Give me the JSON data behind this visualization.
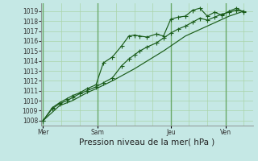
{
  "bg_color": "#c5e8e5",
  "grid_color_major": "#6aaa6a",
  "grid_color_minor": "#aad4aa",
  "line_color": "#1a5c1a",
  "marker_color": "#1a5c1a",
  "ylim": [
    1007.5,
    1019.8
  ],
  "yticks": [
    1008,
    1009,
    1010,
    1011,
    1012,
    1013,
    1014,
    1015,
    1016,
    1017,
    1018,
    1019
  ],
  "xlabel": "Pression niveau de la mer( hPa )",
  "xtick_labels": [
    "Mer",
    "Sam",
    "Jeu",
    "Ven"
  ],
  "day_positions": [
    0,
    3,
    7,
    10
  ],
  "xlim": [
    -0.1,
    11.5
  ],
  "n_cols": 12,
  "series1_x": [
    0,
    0.5,
    0.9,
    1.3,
    1.6,
    2.0,
    2.4,
    2.9,
    3.3,
    3.8,
    4.3,
    4.7,
    5.0,
    5.3,
    5.7,
    6.2,
    6.6,
    7.0,
    7.4,
    7.8,
    8.2,
    8.6,
    9.0,
    9.4,
    9.8,
    10.2,
    10.6,
    11.0
  ],
  "series1_y": [
    1008.0,
    1009.3,
    1009.8,
    1010.2,
    1010.5,
    1010.8,
    1011.2,
    1011.6,
    1013.8,
    1014.4,
    1015.5,
    1016.5,
    1016.6,
    1016.5,
    1016.4,
    1016.7,
    1016.5,
    1018.2,
    1018.4,
    1018.5,
    1019.1,
    1019.3,
    1018.5,
    1018.9,
    1018.6,
    1019.0,
    1019.3,
    1018.9
  ],
  "series2_x": [
    0,
    0.5,
    0.9,
    1.3,
    1.6,
    2.0,
    2.4,
    2.9,
    3.3,
    3.8,
    4.3,
    4.7,
    5.0,
    5.3,
    5.7,
    6.2,
    6.6,
    7.0,
    7.4,
    7.8,
    8.2,
    8.6,
    9.0,
    9.4,
    9.8,
    10.2,
    10.6,
    11.0
  ],
  "series2_y": [
    1008.0,
    1009.2,
    1009.7,
    1010.0,
    1010.3,
    1010.7,
    1011.0,
    1011.4,
    1011.8,
    1012.3,
    1013.5,
    1014.2,
    1014.6,
    1015.0,
    1015.4,
    1015.8,
    1016.3,
    1016.8,
    1017.2,
    1017.5,
    1017.9,
    1018.3,
    1018.1,
    1018.4,
    1018.7,
    1018.9,
    1019.1,
    1019.0
  ],
  "series3_x": [
    0,
    0.9,
    1.6,
    2.4,
    2.9,
    3.8,
    5.0,
    6.6,
    7.8,
    9.0,
    10.2,
    11.0
  ],
  "series3_y": [
    1008.0,
    1009.5,
    1010.0,
    1010.8,
    1011.2,
    1012.0,
    1013.2,
    1015.0,
    1016.5,
    1017.5,
    1018.5,
    1019.0
  ],
  "tick_fontsize": 5.5,
  "axis_fontsize": 7.5
}
